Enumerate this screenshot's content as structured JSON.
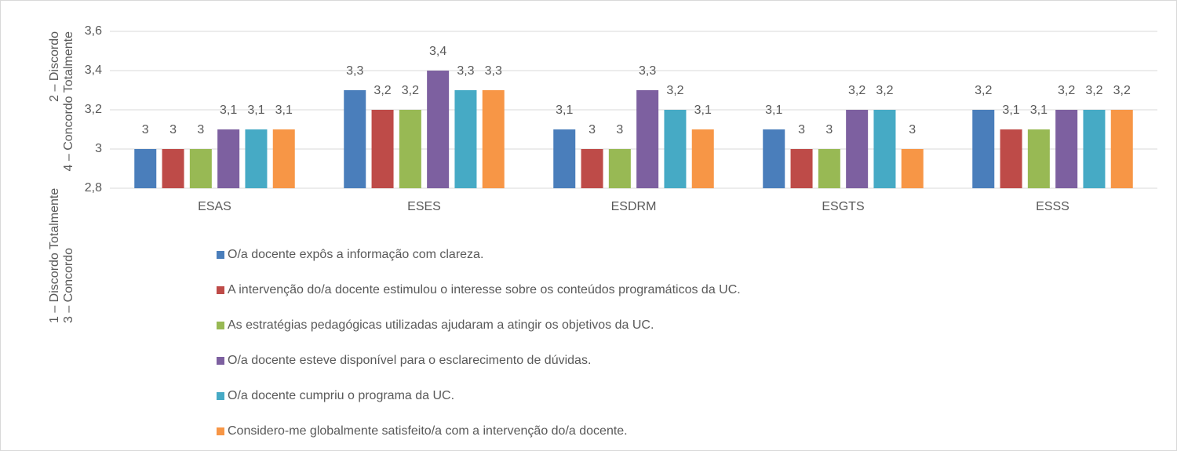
{
  "chart_data": {
    "type": "bar",
    "y_label": [
      [
        "1 – Discordo Totalmente",
        "2 – Discordo"
      ],
      [
        "3 – Concordo",
        "4 – Concordo Totalmente"
      ]
    ],
    "categories": [
      "ESAS",
      "ESES",
      "ESDRM",
      "ESGTS",
      "ESSS"
    ],
    "series": [
      {
        "name": "O/a docente expôs a informação com clareza.",
        "color": "#4a7ebb",
        "values": [
          3,
          3.3,
          3.1,
          3.1,
          3.2
        ],
        "value_labels": [
          "3",
          "3,3",
          "3,1",
          "3,1",
          "3,2"
        ]
      },
      {
        "name": "A intervenção do/a docente estimulou o interesse sobre os conteúdos programáticos da UC.",
        "color": "#be4b48",
        "values": [
          3,
          3.2,
          3,
          3,
          3.1
        ],
        "value_labels": [
          "3",
          "3,2",
          "3",
          "3",
          "3,1"
        ]
      },
      {
        "name": "As estratégias pedagógicas utilizadas ajudaram a atingir os objetivos da UC.",
        "color": "#98b954",
        "values": [
          3,
          3.2,
          3,
          3,
          3.1
        ],
        "value_labels": [
          "3",
          "3,2",
          "3",
          "3",
          "3,1"
        ]
      },
      {
        "name": "O/a docente esteve disponível para o esclarecimento de dúvidas.",
        "color": "#7d60a0",
        "values": [
          3.1,
          3.4,
          3.3,
          3.2,
          3.2
        ],
        "value_labels": [
          "3,1",
          "3,4",
          "3,3",
          "3,2",
          "3,2"
        ]
      },
      {
        "name": "O/a docente cumpriu o programa da UC.",
        "color": "#46aac5",
        "values": [
          3.1,
          3.3,
          3.2,
          3.2,
          3.2
        ],
        "value_labels": [
          "3,1",
          "3,3",
          "3,2",
          "3,2",
          "3,2"
        ]
      },
      {
        "name": "Considero-me globalmente satisfeito/a com a intervenção do/a docente.",
        "color": "#f79646",
        "values": [
          3.1,
          3.3,
          3.1,
          3,
          3.2
        ],
        "value_labels": [
          "3,1",
          "3,3",
          "3,1",
          "3",
          "3,2"
        ]
      }
    ],
    "ylim": [
      2.8,
      3.6
    ],
    "yticks": [
      {
        "value": 2.8,
        "label": "2,8"
      },
      3,
      {
        "value": 3.2,
        "label": "3,2"
      },
      {
        "value": 3.4,
        "label": "3,4"
      },
      {
        "value": 3.6,
        "label": "3,6"
      }
    ],
    "grid": true,
    "legend": "bottom"
  }
}
